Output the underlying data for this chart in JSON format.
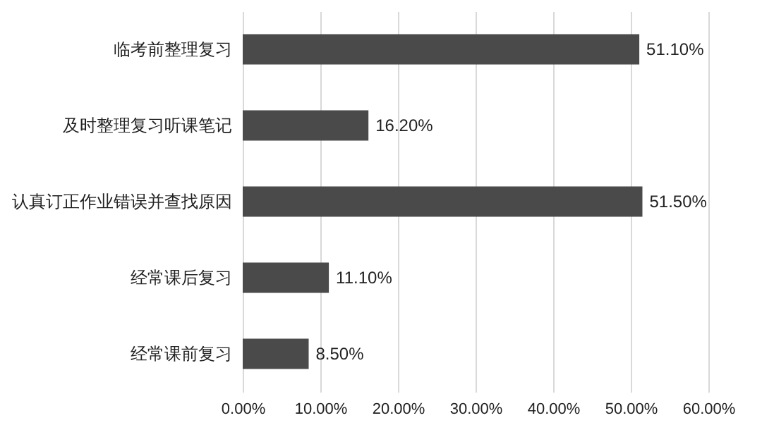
{
  "chart_data": {
    "type": "bar",
    "orientation": "horizontal",
    "categories": [
      "临考前整理复习",
      "及时整理复习听课笔记",
      "认真订正作业错误并查找原因",
      "经常课后复习",
      "经常课前复习"
    ],
    "values": [
      51.1,
      16.2,
      51.5,
      11.1,
      8.5
    ],
    "value_labels": [
      "51.10%",
      "16.20%",
      "51.50%",
      "11.10%",
      "8.50%"
    ],
    "color": "#4a4a4a",
    "xlim": [
      0,
      60
    ],
    "xticks": [
      {
        "value": 0,
        "label": "0.00%"
      },
      {
        "value": 10,
        "label": "10.00%"
      },
      {
        "value": 20,
        "label": "20.00%"
      },
      {
        "value": 30,
        "label": "30.00%"
      },
      {
        "value": 40,
        "label": "40.00%"
      },
      {
        "value": 50,
        "label": "50.00%"
      },
      {
        "value": 60,
        "label": "60.00%"
      }
    ],
    "grid": "x"
  }
}
